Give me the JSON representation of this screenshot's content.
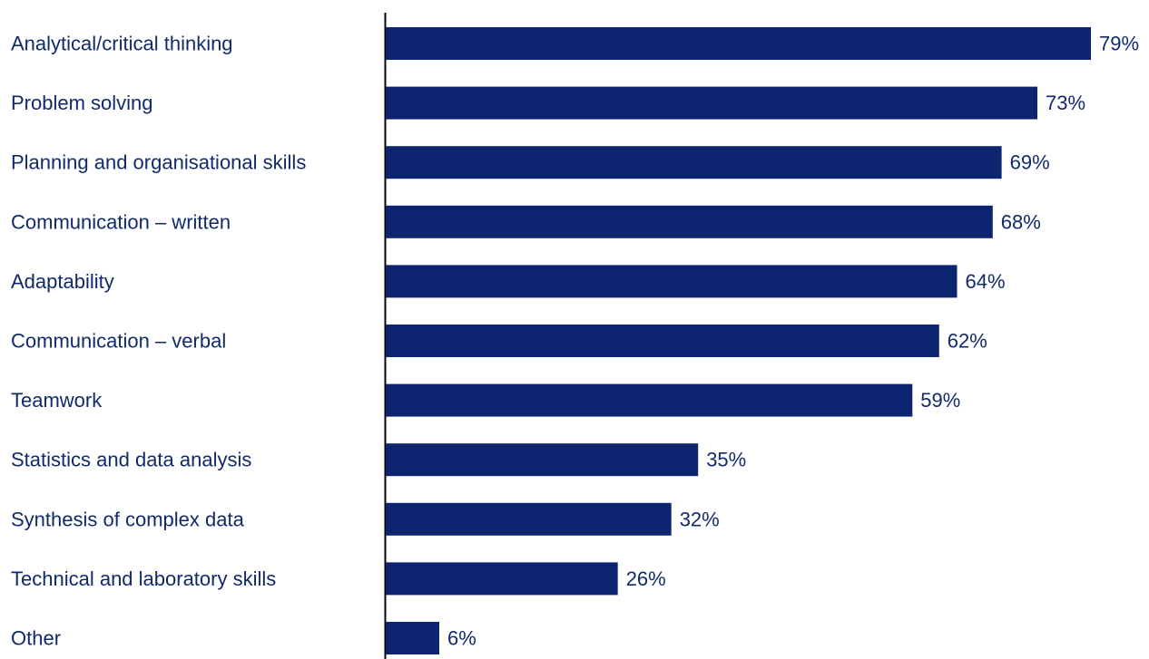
{
  "chart_data": {
    "type": "bar",
    "orientation": "horizontal",
    "categories": [
      "Analytical/critical thinking",
      "Problem solving",
      "Planning and organisational skills",
      "Communication – written",
      "Adaptability",
      "Communication – verbal",
      "Teamwork",
      "Statistics and data analysis",
      "Synthesis of complex data",
      "Technical and laboratory skills",
      "Other"
    ],
    "values": [
      79,
      73,
      69,
      68,
      64,
      62,
      59,
      35,
      32,
      26,
      6
    ],
    "value_labels": [
      "79%",
      "73%",
      "69%",
      "68%",
      "64%",
      "62%",
      "59%",
      "35%",
      "32%",
      "26%",
      "6%"
    ],
    "unit": "%",
    "xlim": [
      0,
      79
    ],
    "grid": false,
    "legend": "none",
    "colors": {
      "bar": "#0d2570",
      "text": "#102a6b",
      "axis": "#000000",
      "background": "#ffffff"
    }
  }
}
